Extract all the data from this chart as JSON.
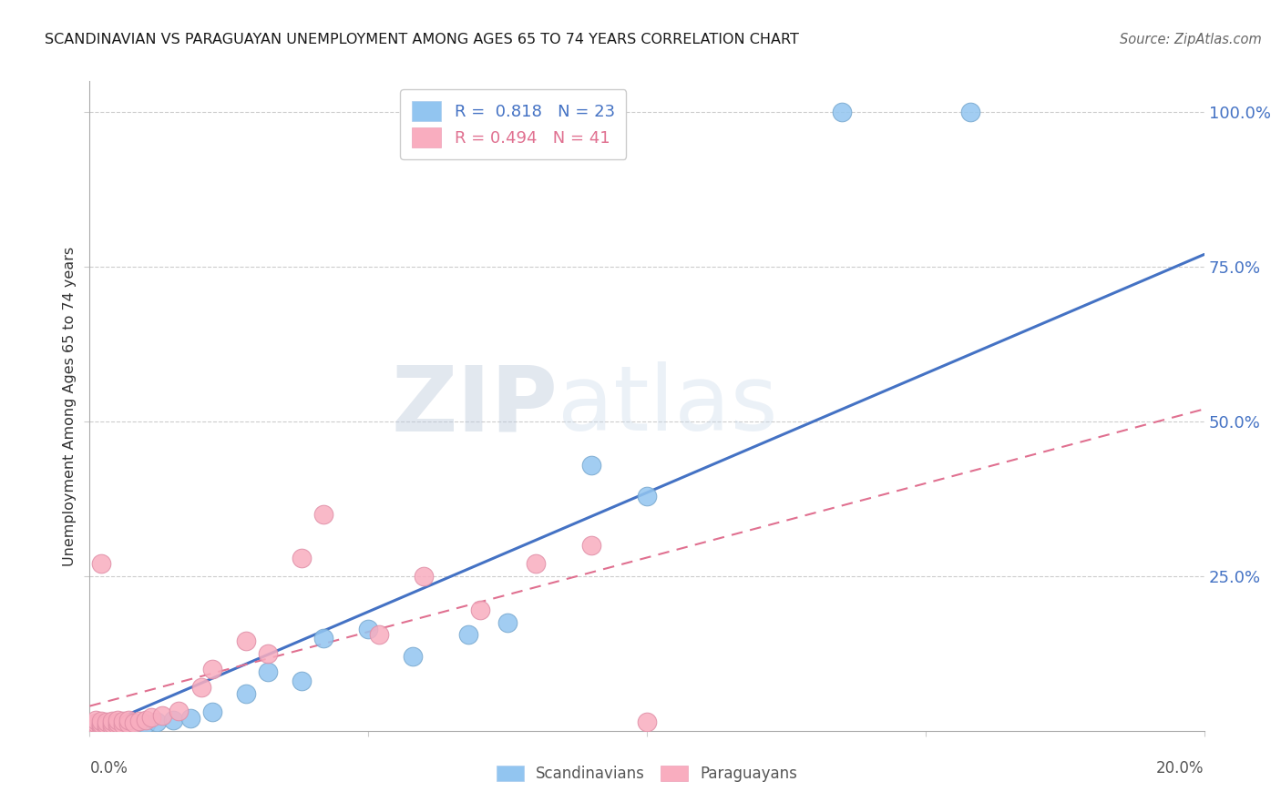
{
  "title": "SCANDINAVIAN VS PARAGUAYAN UNEMPLOYMENT AMONG AGES 65 TO 74 YEARS CORRELATION CHART",
  "source": "Source: ZipAtlas.com",
  "ylabel": "Unemployment Among Ages 65 to 74 years",
  "watermark_zip": "ZIP",
  "watermark_atlas": "atlas",
  "legend_blue_r": "0.818",
  "legend_blue_n": "23",
  "legend_pink_r": "0.494",
  "legend_pink_n": "41",
  "legend_blue_label": "Scandinavians",
  "legend_pink_label": "Paraguayans",
  "xlim": [
    0.0,
    0.2
  ],
  "ylim": [
    0.0,
    1.05
  ],
  "yticks": [
    0.25,
    0.5,
    0.75,
    1.0
  ],
  "ytick_labels": [
    "25.0%",
    "50.0%",
    "75.0%",
    "100.0%"
  ],
  "blue_scatter_color": "#92C5F0",
  "pink_scatter_color": "#F9ADBF",
  "blue_line_color": "#4472C4",
  "pink_line_color": "#E07090",
  "grid_color": "#CCCCCC",
  "blue_line_x": [
    0.0,
    0.2
  ],
  "blue_line_y": [
    0.0,
    0.77
  ],
  "pink_line_x": [
    0.0,
    0.2
  ],
  "pink_line_y": [
    0.04,
    0.52
  ],
  "scan_x": [
    0.001,
    0.002,
    0.003,
    0.005,
    0.006,
    0.008,
    0.01,
    0.012,
    0.015,
    0.018,
    0.022,
    0.028,
    0.032,
    0.038,
    0.042,
    0.05,
    0.058,
    0.068,
    0.075,
    0.09,
    0.1,
    0.135,
    0.158
  ],
  "scan_y": [
    0.005,
    0.005,
    0.007,
    0.008,
    0.01,
    0.012,
    0.012,
    0.015,
    0.018,
    0.02,
    0.03,
    0.06,
    0.095,
    0.08,
    0.15,
    0.165,
    0.12,
    0.155,
    0.175,
    0.43,
    0.38,
    1.0,
    1.0
  ],
  "para_x": [
    0.001,
    0.001,
    0.001,
    0.001,
    0.001,
    0.002,
    0.002,
    0.002,
    0.002,
    0.003,
    0.003,
    0.003,
    0.004,
    0.004,
    0.004,
    0.005,
    0.005,
    0.005,
    0.006,
    0.006,
    0.007,
    0.007,
    0.008,
    0.009,
    0.01,
    0.011,
    0.013,
    0.016,
    0.02,
    0.022,
    0.028,
    0.032,
    0.038,
    0.042,
    0.052,
    0.06,
    0.07,
    0.08,
    0.09,
    0.1,
    0.002
  ],
  "para_y": [
    0.005,
    0.008,
    0.01,
    0.013,
    0.018,
    0.005,
    0.008,
    0.012,
    0.016,
    0.005,
    0.01,
    0.015,
    0.007,
    0.012,
    0.016,
    0.008,
    0.013,
    0.018,
    0.01,
    0.016,
    0.012,
    0.018,
    0.013,
    0.016,
    0.018,
    0.022,
    0.025,
    0.032,
    0.07,
    0.1,
    0.145,
    0.125,
    0.28,
    0.35,
    0.155,
    0.25,
    0.195,
    0.27,
    0.3,
    0.015,
    0.27
  ]
}
